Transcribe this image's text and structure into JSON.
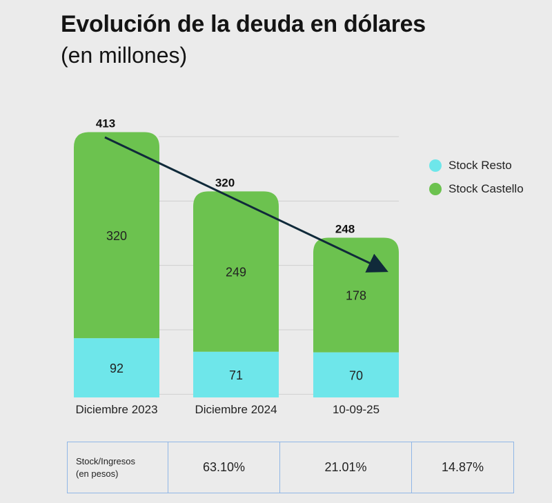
{
  "header": {
    "title": "Evolución de la deuda en dólares",
    "subtitle": "(en millones)"
  },
  "chart_data": {
    "type": "bar",
    "stacked": true,
    "categories": [
      "Diciembre 2023",
      "Diciembre 2024",
      "10-09-25"
    ],
    "series": [
      {
        "name": "Stock Resto",
        "values": [
          92,
          71,
          70
        ],
        "color": "#6ee6ea"
      },
      {
        "name": "Stock Castello",
        "values": [
          320,
          249,
          178
        ],
        "color": "#6cc24f"
      }
    ],
    "totals": [
      413,
      320,
      248
    ],
    "ylim": [
      0,
      420
    ],
    "grid": true,
    "legend": "right",
    "trend_arrow": true
  },
  "ratio_table": {
    "label_line1": "Stock/Ingresos",
    "label_line2": "(en pesos)",
    "values": [
      "63.10%",
      "21.01%",
      "14.87%"
    ]
  }
}
